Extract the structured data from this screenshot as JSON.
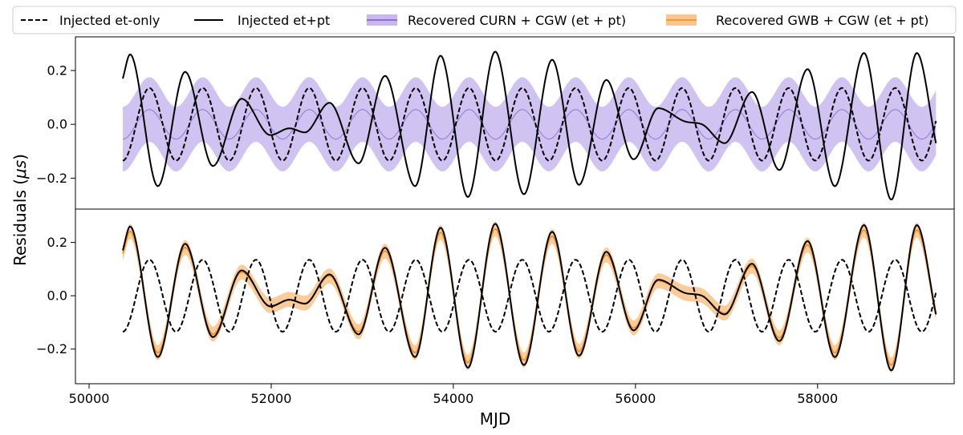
{
  "chart_data": {
    "type": "line",
    "xlabel": "MJD",
    "ylabel_prefix": "Residuals (",
    "ylabel_unit": "μs",
    "ylabel_suffix": ")",
    "xlim": [
      49850,
      59500
    ],
    "x_ticks": [
      50000,
      52000,
      54000,
      56000,
      58000
    ],
    "x_tick_labels": [
      "50000",
      "52000",
      "54000",
      "56000",
      "58000"
    ],
    "x_data_range": [
      50370,
      59300
    ],
    "legend": [
      {
        "key": "et_only",
        "label": "Injected et-only",
        "style": "dashed",
        "color": "#000000"
      },
      {
        "key": "et_pt",
        "label": "Injected et+pt",
        "style": "solid",
        "color": "#000000"
      },
      {
        "key": "curn",
        "label": "Recovered CURN + CGW (et + pt)",
        "style": "band",
        "color": "#7b52cc",
        "fill": "#c9b8ee"
      },
      {
        "key": "gwb",
        "label": "Recovered GWB + CGW (et + pt)",
        "style": "band",
        "color": "#f08a1c",
        "fill": "#f8c68e"
      }
    ],
    "injected_et_only": {
      "model": "-A*cos(2*pi*(MJD-x0)/P)",
      "amplitude": 0.135,
      "period_days": 585,
      "x0": 50370
    },
    "injected_et_pt": {
      "mjd": [
        50370,
        50450,
        50755,
        51055,
        51360,
        51675,
        51990,
        52200,
        52370,
        52640,
        52960,
        53250,
        53580,
        53860,
        54160,
        54460,
        54775,
        55085,
        55380,
        55680,
        55980,
        56250,
        56550,
        56730,
        56980,
        57280,
        57580,
        57890,
        58190,
        58510,
        58810,
        59090,
        59300
      ],
      "residual": [
        0.17,
        0.26,
        -0.23,
        0.195,
        -0.155,
        0.095,
        -0.04,
        -0.015,
        -0.03,
        0.08,
        -0.145,
        0.18,
        -0.23,
        0.255,
        -0.27,
        0.27,
        -0.26,
        0.24,
        -0.225,
        0.165,
        -0.13,
        0.06,
        0.01,
        0.0,
        -0.07,
        0.12,
        -0.17,
        0.205,
        -0.23,
        0.265,
        -0.28,
        0.265,
        -0.07
      ]
    },
    "panels": [
      {
        "name": "top",
        "ylim": [
          -0.315,
          0.325
        ],
        "y_ticks": [
          0.2,
          0.0,
          -0.2
        ],
        "y_tick_labels": [
          "0.2",
          "0.0",
          "−0.2"
        ],
        "recovered": "curn",
        "band_center": {
          "model": "-A*cos(2*pi*(MJD-x0)/P)",
          "amplitude": 0.055,
          "period_days": 585,
          "x0": 50370
        },
        "band_halfwidth": 0.12
      },
      {
        "name": "bottom",
        "ylim": [
          -0.33,
          0.325
        ],
        "y_ticks": [
          0.2,
          0.0,
          -0.2
        ],
        "y_tick_labels": [
          "0.2",
          "0.0",
          "−0.2"
        ],
        "recovered": "gwb",
        "band_center": {
          "follows": "injected_et_pt",
          "shrink": 0.93
        },
        "band_halfwidth": 0.028
      }
    ]
  }
}
